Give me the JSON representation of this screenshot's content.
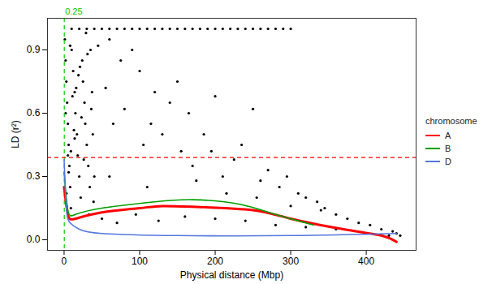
{
  "chart_data": {
    "type": "scatter",
    "x_label": "Physical distance (Mbp)",
    "y_label": "LD (r²)",
    "xlim": [
      -22,
      466
    ],
    "ylim": [
      -0.05,
      1.05
    ],
    "xticks": [
      0,
      100,
      200,
      300,
      400
    ],
    "yticks": [
      {
        "value": 0,
        "label": "0.0"
      },
      0.3,
      0.6,
      0.9
    ],
    "grid": false,
    "legend": "right",
    "legend_title": "chromosome",
    "points": {
      "color": "#000000",
      "x": [
        1,
        2,
        3,
        4,
        5,
        6,
        7,
        8,
        9,
        10,
        12,
        14,
        15,
        17,
        18,
        20,
        22,
        24,
        25,
        27,
        28,
        30,
        32,
        34,
        35,
        37,
        38,
        40,
        2,
        5,
        8,
        11,
        14,
        19,
        23,
        26,
        31,
        36,
        3,
        6,
        9,
        13,
        16,
        21,
        29,
        33,
        39,
        10,
        20,
        30,
        40,
        50,
        60,
        70,
        80,
        90,
        100,
        110,
        120,
        130,
        140,
        150,
        160,
        170,
        180,
        190,
        200,
        210,
        220,
        230,
        240,
        250,
        260,
        270,
        280,
        290,
        300,
        45,
        55,
        60,
        65,
        75,
        80,
        90,
        100,
        105,
        115,
        120,
        130,
        140,
        150,
        155,
        165,
        170,
        185,
        195,
        200,
        210,
        225,
        235,
        250,
        260,
        270,
        285,
        295,
        310,
        320,
        335,
        345,
        360,
        375,
        390,
        405,
        420,
        435,
        440,
        50,
        70,
        95,
        125,
        160,
        200,
        240,
        280,
        320,
        360,
        400,
        430,
        445,
        60,
        110,
        175,
        215,
        255,
        300,
        340
      ],
      "y": [
        0.95,
        0.85,
        0.75,
        0.65,
        0.55,
        0.45,
        0.35,
        0.25,
        0.15,
        0.9,
        0.8,
        0.7,
        0.6,
        0.5,
        0.4,
        0.3,
        0.2,
        0.85,
        0.75,
        0.65,
        0.55,
        0.45,
        0.35,
        0.25,
        0.9,
        0.7,
        0.5,
        0.3,
        0.6,
        0.4,
        0.92,
        0.68,
        0.48,
        0.78,
        0.58,
        0.38,
        0.88,
        0.62,
        0.22,
        0.32,
        0.42,
        0.52,
        0.72,
        0.82,
        0.98,
        0.12,
        0.18,
        1,
        1,
        1,
        1,
        1,
        1,
        1,
        1,
        1,
        1,
        1,
        1,
        1,
        1,
        1,
        1,
        1,
        1,
        1,
        1,
        1,
        1,
        1,
        1,
        1,
        1,
        1,
        1,
        1,
        1,
        0.92,
        0.72,
        0.95,
        0.55,
        0.85,
        0.62,
        0.9,
        0.8,
        0.45,
        0.55,
        0.7,
        0.5,
        0.65,
        0.75,
        0.42,
        0.6,
        0.35,
        0.5,
        0.42,
        0.68,
        0.3,
        0.38,
        0.45,
        0.62,
        0.28,
        0.33,
        0.25,
        0.3,
        0.22,
        0.2,
        0.18,
        0.15,
        0.12,
        0.1,
        0.08,
        0.07,
        0.05,
        0.04,
        0.03,
        0.1,
        0.08,
        0.12,
        0.09,
        0.11,
        0.1,
        0.09,
        0.07,
        0.06,
        0.05,
        0.03,
        0.02,
        0.02,
        0.3,
        0.25,
        0.28,
        0.22,
        0.2,
        0.16,
        0.14
      ]
    },
    "series": [
      {
        "name": "A",
        "type": "line",
        "color": "#ff0000",
        "x": [
          0,
          5,
          15,
          50,
          100,
          130,
          180,
          250,
          300,
          370,
          420,
          440
        ],
        "values": [
          0.25,
          0.12,
          0.1,
          0.13,
          0.15,
          0.16,
          0.155,
          0.14,
          0.1,
          0.05,
          0.02,
          -0.01
        ]
      },
      {
        "name": "B",
        "type": "line",
        "color": "#00a000",
        "x": [
          0,
          5,
          15,
          50,
          120,
          170,
          230,
          280,
          320,
          330
        ],
        "values": [
          0.32,
          0.14,
          0.12,
          0.15,
          0.18,
          0.19,
          0.17,
          0.12,
          0.08,
          0.07
        ]
      },
      {
        "name": "D",
        "type": "line",
        "color": "#5577dd",
        "x": [
          0,
          3,
          8,
          20,
          50,
          150,
          300,
          440
        ],
        "values": [
          0.38,
          0.15,
          0.08,
          0.05,
          0.03,
          0.02,
          0.02,
          0.03
        ]
      }
    ],
    "annotations": [
      {
        "type": "vline",
        "x": 0.25,
        "text": "0.25",
        "color": "#00cc00",
        "line_style": "dashed"
      },
      {
        "type": "hline",
        "y": 0.39,
        "color": "#ff0000",
        "line_style": "dashed"
      }
    ]
  }
}
